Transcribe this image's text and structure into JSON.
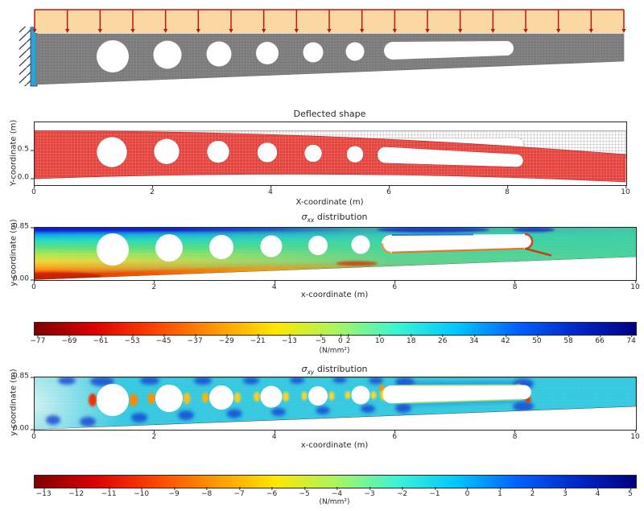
{
  "schematic": {
    "description": "tapered cantilever beam finite-element model, fixed at left wall, uniform downward distributed load on top edge",
    "load_band_color": "#fbd7a1",
    "arrow_color": "#c11616",
    "beam_fill": "#7a7a7a",
    "support_color": "#2fa1d6",
    "n_load_arrows": 19,
    "n_circular_holes": 6,
    "n_slots": 1
  },
  "colors": {
    "jet_reversed_stops": [
      "#7f0000",
      "#dc0000",
      "#ff4400",
      "#ff9700",
      "#ffe600",
      "#aaf55f",
      "#3df5d2",
      "#00c8ff",
      "#0064ff",
      "#0028c8",
      "#000083"
    ],
    "deformed_mesh": "#e5423b",
    "undeformed_mesh": "#9a9a9a",
    "sxy_base": "#38cbe2"
  },
  "chart_data": [
    {
      "id": "deflected",
      "type": "line",
      "title": "Deflected shape",
      "xlabel": "X-coordinate (m)",
      "ylabel": "Y-coordinate (m)",
      "x": {
        "range": [
          0,
          10
        ],
        "values": [
          0,
          2,
          4,
          6,
          8,
          10
        ]
      },
      "y": {
        "range": [
          -0.114,
          1.0
        ],
        "values": [
          {
            "v": 0.5,
            "label": "0.5"
          },
          {
            "v": 0.0,
            "label": "0.0"
          }
        ]
      },
      "series": [
        {
          "name": "undeformed mesh",
          "color": "#9a9a9a"
        },
        {
          "name": "deformed mesh",
          "color": "#e5423b"
        }
      ],
      "beam": {
        "length_m": 10,
        "height_left_m": 0.85,
        "height_right_m": 0.48,
        "n_circular_holes": 6,
        "slot_span_m": [
          5.9,
          8.2
        ],
        "tip_deflection_m": -0.42
      },
      "grid": false,
      "legend_position": "none"
    },
    {
      "id": "sigma_xx",
      "type": "heatmap",
      "title": {
        "sigma": "σ",
        "sub": "xx",
        "rest": " distribution"
      },
      "xlabel": "x-coordinate (m)",
      "ylabel": "y-coordinate (m)",
      "x": {
        "range": [
          0,
          10
        ],
        "values": [
          0,
          2,
          4,
          6,
          8,
          10
        ]
      },
      "y": {
        "range": [
          0,
          0.85
        ],
        "values": [
          {
            "v": 0.85,
            "label": "0.85"
          },
          {
            "v": 0.0,
            "label": "0.00"
          }
        ]
      },
      "value_range_nmm2": [
        -77,
        74
      ],
      "grid": false,
      "legend_position": "none"
    },
    {
      "id": "colorbar_sigma_xx",
      "type": "colorbar",
      "label": "(N/mm²)",
      "colormap": "jet reversed",
      "range": [
        -78,
        75
      ],
      "values": [
        -77,
        -69,
        -61,
        -53,
        -45,
        -37,
        -29,
        -21,
        -13,
        -5,
        0,
        2,
        10,
        18,
        26,
        34,
        42,
        50,
        58,
        66,
        74
      ]
    },
    {
      "id": "sigma_xy",
      "type": "heatmap",
      "title": {
        "sigma": "σ",
        "sub": "xy",
        "rest": " distribution"
      },
      "xlabel": "x-coordinate (m)",
      "ylabel": "y-coordinate (m)",
      "x": {
        "range": [
          0,
          10
        ],
        "values": [
          0,
          2,
          4,
          6,
          8,
          10
        ]
      },
      "y": {
        "range": [
          0,
          0.85
        ],
        "values": [
          {
            "v": 0.85,
            "label": "0.85"
          },
          {
            "v": 0.0,
            "label": "0.00"
          }
        ]
      },
      "value_range_nmm2": [
        -13,
        5
      ],
      "grid": false,
      "legend_position": "none"
    },
    {
      "id": "colorbar_sigma_xy",
      "type": "colorbar",
      "label": "(N/mm²)",
      "colormap": "jet reversed",
      "range": [
        -13.3,
        5.15
      ],
      "values": [
        -13,
        -12,
        -11,
        -10,
        -9,
        -8,
        -7,
        -6,
        -5,
        -4,
        -3,
        -2,
        -1,
        0,
        1,
        2,
        3,
        4,
        5
      ]
    }
  ]
}
